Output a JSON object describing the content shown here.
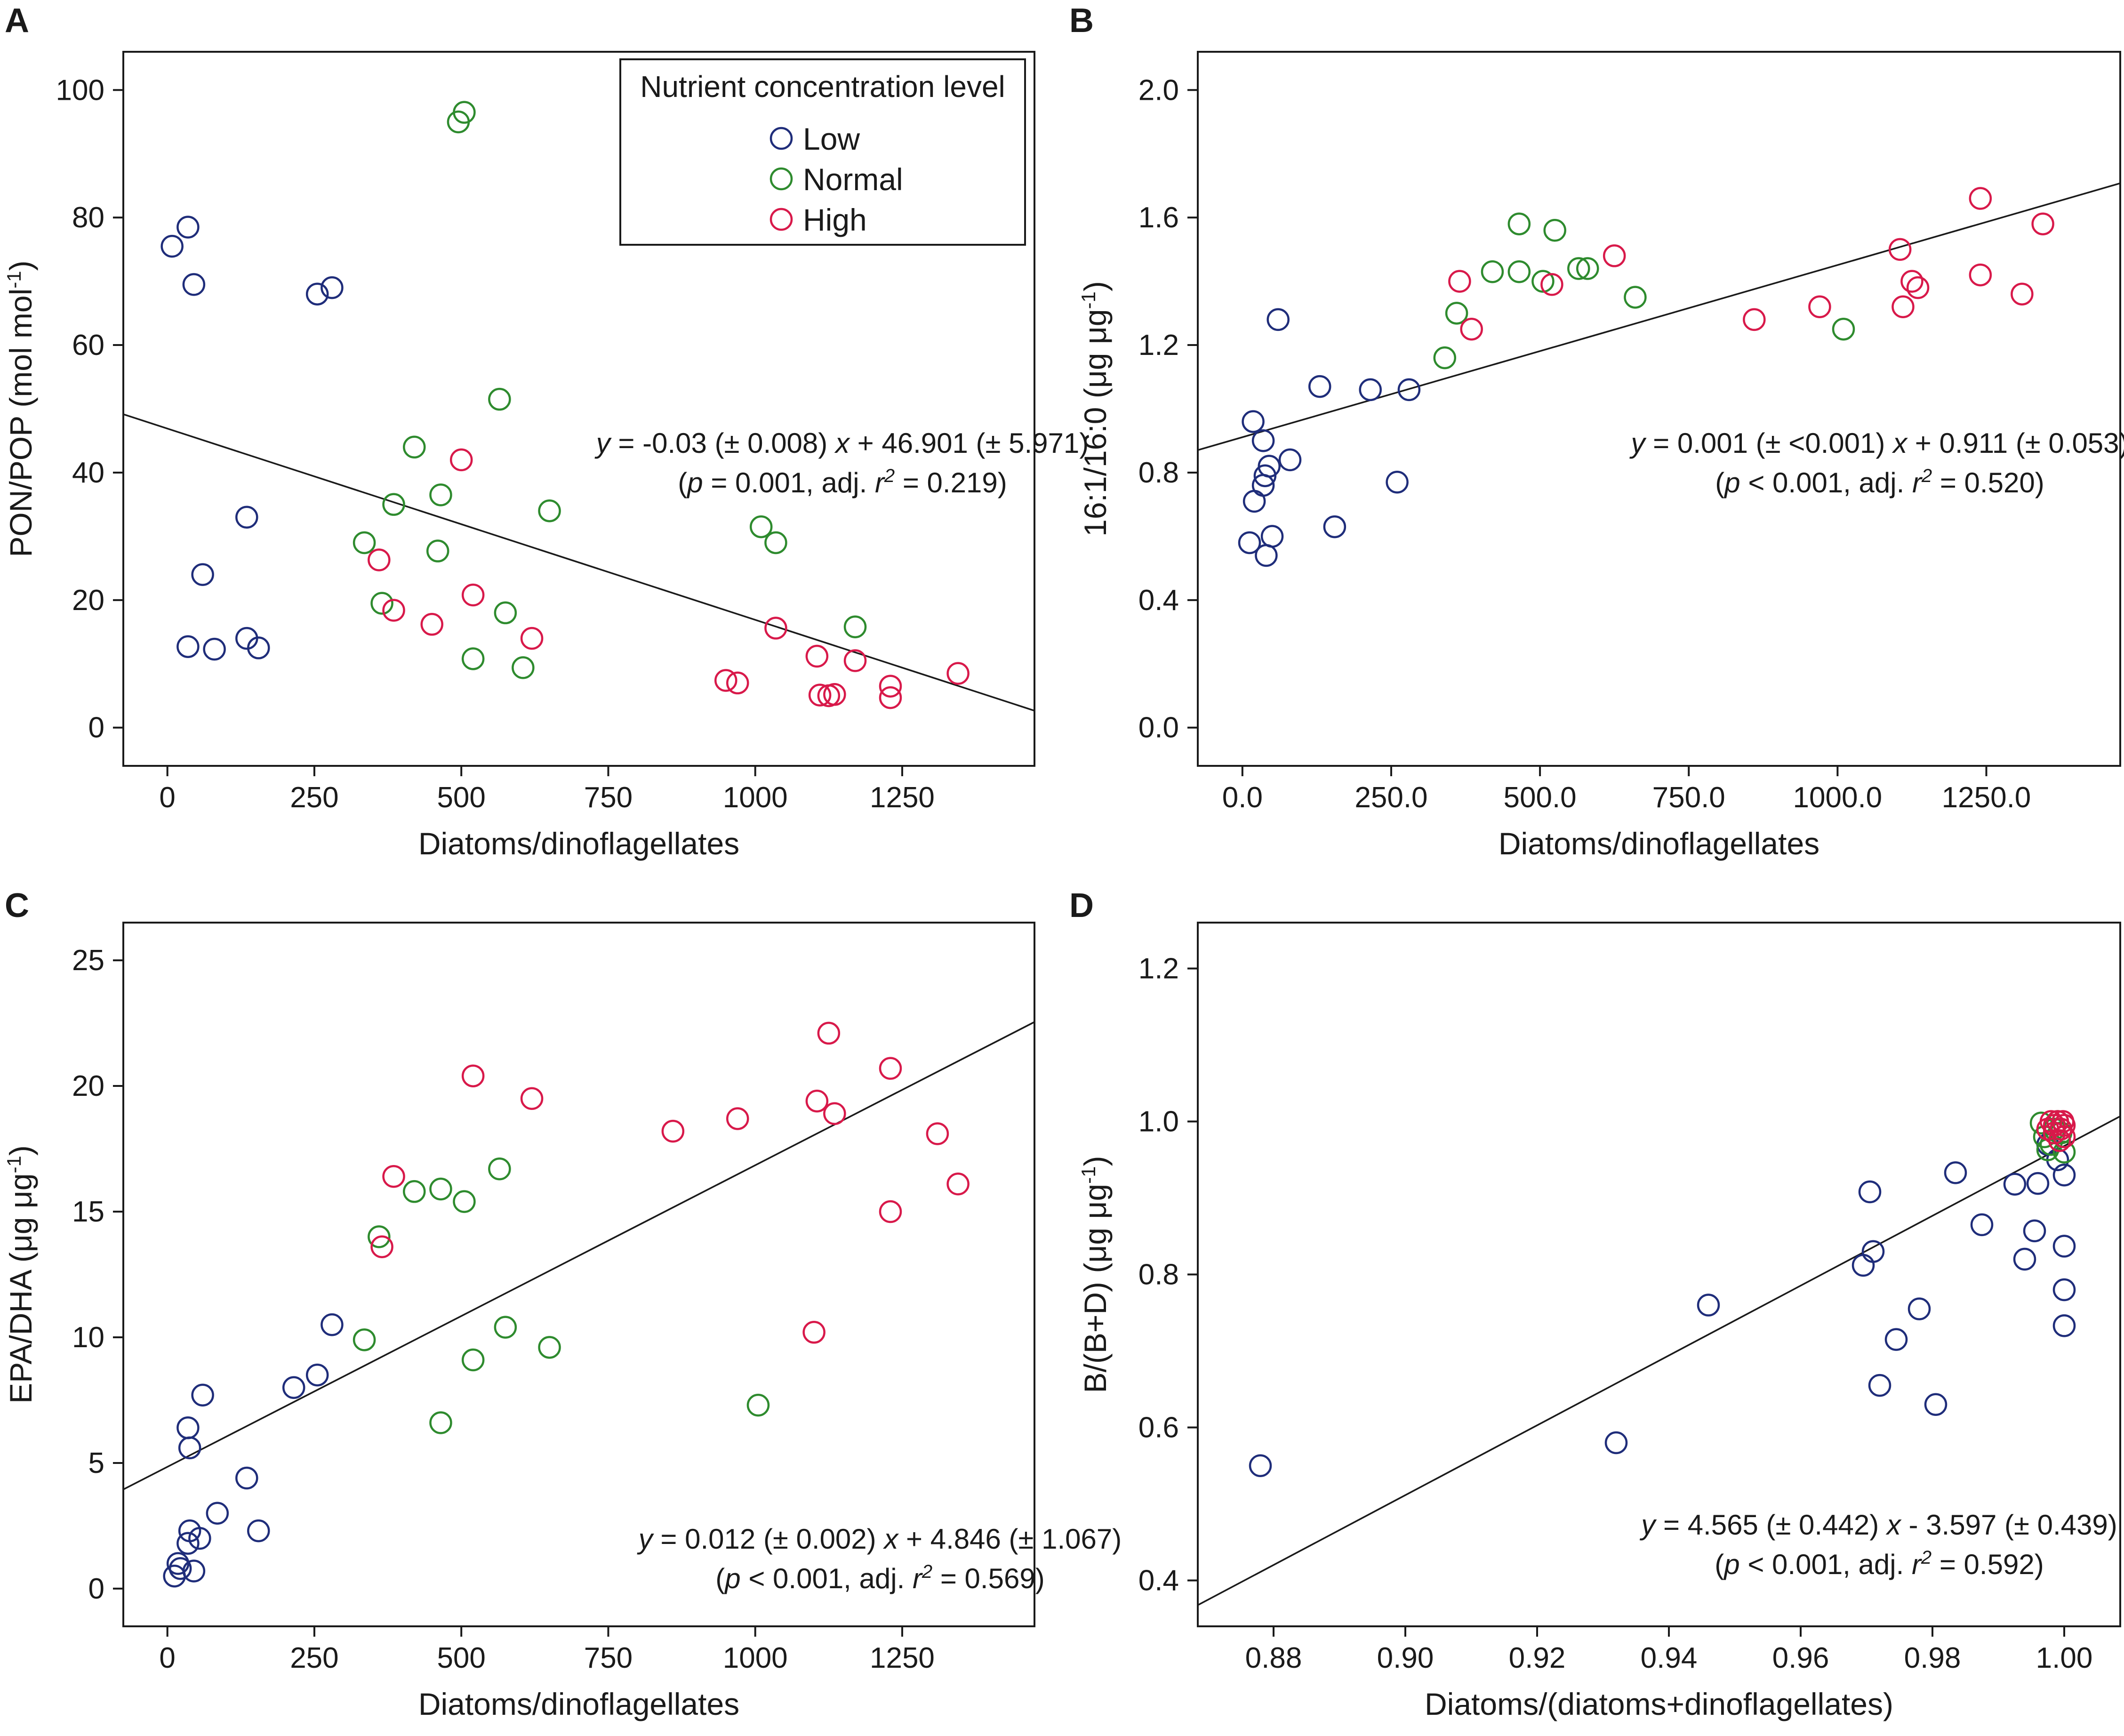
{
  "colors": {
    "Low": "#1f2d7a",
    "Normal": "#2e8b2e",
    "High": "#d8194a",
    "text": "#1a1a1a"
  },
  "legend": {
    "title": "Nutrient concentration level",
    "entries": [
      "Low",
      "Normal",
      "High"
    ]
  },
  "chart_data": [
    {
      "id": "A",
      "panel_label": "A",
      "type": "scatter",
      "xlabel": "Diatoms/dinoflagellates",
      "ylabel": "PON/POP (mol mol",
      "ylabel_sup": "-1",
      "ylabel_end": ")",
      "xlim": [
        -75,
        1475
      ],
      "ylim": [
        -6,
        106
      ],
      "xticks": [
        0,
        250,
        500,
        750,
        1000,
        1250
      ],
      "yticks": [
        0,
        20,
        40,
        60,
        80,
        100
      ],
      "tick_decimals": 0,
      "regression": {
        "slope": -0.03,
        "intercept": 46.901
      },
      "equation": [
        "y = -0.03 (± 0.008) x + 46.901 (± 5.971)",
        "(p = 0.001, adj. r2 = 0.219)"
      ],
      "has_legend": true,
      "series": [
        {
          "name": "Low",
          "points": [
            [
              8,
              75.5
            ],
            [
              35,
              78.5
            ],
            [
              45,
              69.5
            ],
            [
              255,
              68
            ],
            [
              280,
              69
            ],
            [
              35,
              12.7
            ],
            [
              80,
              12.3
            ],
            [
              135,
              14
            ],
            [
              155,
              12.5
            ],
            [
              60,
              24
            ],
            [
              135,
              33
            ]
          ]
        },
        {
          "name": "Normal",
          "points": [
            [
              495,
              95
            ],
            [
              505,
              96.5
            ],
            [
              565,
              51.5
            ],
            [
              420,
              44
            ],
            [
              465,
              36.5
            ],
            [
              385,
              35
            ],
            [
              650,
              34
            ],
            [
              335,
              29
            ],
            [
              460,
              27.7
            ],
            [
              365,
              19.5
            ],
            [
              575,
              18
            ],
            [
              520,
              10.8
            ],
            [
              605,
              9.4
            ],
            [
              1010,
              31.5
            ],
            [
              1035,
              29
            ],
            [
              1170,
              15.8
            ]
          ]
        },
        {
          "name": "High",
          "points": [
            [
              500,
              42
            ],
            [
              360,
              26.3
            ],
            [
              385,
              18.4
            ],
            [
              520,
              20.8
            ],
            [
              450,
              16.2
            ],
            [
              620,
              14
            ],
            [
              1035,
              15.6
            ],
            [
              1105,
              11.2
            ],
            [
              1170,
              10.5
            ],
            [
              950,
              7.4
            ],
            [
              970,
              7
            ],
            [
              1110,
              5.1
            ],
            [
              1125,
              5
            ],
            [
              1135,
              5.2
            ],
            [
              1230,
              6.5
            ],
            [
              1230,
              4.7
            ],
            [
              1345,
              8.5
            ]
          ]
        }
      ]
    },
    {
      "id": "B",
      "panel_label": "B",
      "type": "scatter",
      "xlabel": "Diatoms/dinoflagellates",
      "ylabel": "16:1/16:0 (μg μg",
      "ylabel_sup": "-1",
      "ylabel_end": ")",
      "xlim": [
        -75,
        1475
      ],
      "ylim": [
        -0.12,
        2.12
      ],
      "xticks": [
        0,
        250,
        500,
        750,
        1000,
        1250
      ],
      "yticks": [
        0,
        0.4,
        0.8,
        1.2,
        1.6,
        2.0
      ],
      "tick_decimals": 1,
      "regression": {
        "slope": 0.00054,
        "intercept": 0.911
      },
      "equation": [
        "y = 0.001 (± <0.001) x + 0.911 (± 0.053)",
        "(p < 0.001, adj. r2 = 0.520)"
      ],
      "has_legend": false,
      "series": [
        {
          "name": "Low",
          "points": [
            [
              60,
              1.28
            ],
            [
              130,
              1.07
            ],
            [
              215,
              1.06
            ],
            [
              280,
              1.06
            ],
            [
              18,
              0.96
            ],
            [
              35,
              0.9
            ],
            [
              80,
              0.84
            ],
            [
              45,
              0.82
            ],
            [
              38,
              0.79
            ],
            [
              35,
              0.76
            ],
            [
              260,
              0.77
            ],
            [
              20,
              0.71
            ],
            [
              155,
              0.63
            ],
            [
              50,
              0.6
            ],
            [
              12,
              0.58
            ],
            [
              40,
              0.54
            ]
          ]
        },
        {
          "name": "Normal",
          "points": [
            [
              465,
              1.58
            ],
            [
              525,
              1.56
            ],
            [
              420,
              1.43
            ],
            [
              465,
              1.43
            ],
            [
              505,
              1.4
            ],
            [
              565,
              1.44
            ],
            [
              580,
              1.44
            ],
            [
              660,
              1.35
            ],
            [
              360,
              1.3
            ],
            [
              340,
              1.16
            ],
            [
              1010,
              1.25
            ]
          ]
        },
        {
          "name": "High",
          "points": [
            [
              1240,
              1.66
            ],
            [
              1345,
              1.58
            ],
            [
              1105,
              1.5
            ],
            [
              625,
              1.48
            ],
            [
              365,
              1.4
            ],
            [
              520,
              1.39
            ],
            [
              1125,
              1.4
            ],
            [
              1135,
              1.38
            ],
            [
              1240,
              1.42
            ],
            [
              1110,
              1.32
            ],
            [
              1310,
              1.36
            ],
            [
              385,
              1.25
            ],
            [
              860,
              1.28
            ],
            [
              970,
              1.32
            ]
          ]
        }
      ]
    },
    {
      "id": "C",
      "panel_label": "C",
      "type": "scatter",
      "xlabel": "Diatoms/dinoflagellates",
      "ylabel": "EPA/DHA (μg μg",
      "ylabel_sup": "-1",
      "ylabel_end": ")",
      "xlim": [
        -75,
        1475
      ],
      "ylim": [
        -1.5,
        26.5
      ],
      "xticks": [
        0,
        250,
        500,
        750,
        1000,
        1250
      ],
      "yticks": [
        0,
        5,
        10,
        15,
        20,
        25
      ],
      "tick_decimals": 0,
      "regression": {
        "slope": 0.012,
        "intercept": 4.846
      },
      "equation": [
        "y = 0.012 (± 0.002) x + 4.846 (± 1.067)",
        "(p < 0.001, adj. r2 = 0.569)"
      ],
      "has_legend": false,
      "series": [
        {
          "name": "Low",
          "points": [
            [
              280,
              10.5
            ],
            [
              255,
              8.5
            ],
            [
              215,
              8
            ],
            [
              60,
              7.7
            ],
            [
              35,
              6.4
            ],
            [
              38,
              5.6
            ],
            [
              135,
              4.4
            ],
            [
              85,
              3
            ],
            [
              155,
              2.3
            ],
            [
              38,
              2.3
            ],
            [
              55,
              2
            ],
            [
              35,
              1.8
            ],
            [
              18,
              1
            ],
            [
              22,
              0.8
            ],
            [
              12,
              0.5
            ],
            [
              45,
              0.7
            ]
          ]
        },
        {
          "name": "Normal",
          "points": [
            [
              565,
              16.7
            ],
            [
              465,
              15.9
            ],
            [
              505,
              15.4
            ],
            [
              420,
              15.8
            ],
            [
              360,
              14
            ],
            [
              335,
              9.9
            ],
            [
              575,
              10.4
            ],
            [
              650,
              9.6
            ],
            [
              520,
              9.1
            ],
            [
              465,
              6.6
            ],
            [
              1005,
              7.3
            ]
          ]
        },
        {
          "name": "High",
          "points": [
            [
              1125,
              22.1
            ],
            [
              1230,
              20.7
            ],
            [
              520,
              20.4
            ],
            [
              620,
              19.5
            ],
            [
              1105,
              19.4
            ],
            [
              1135,
              18.9
            ],
            [
              970,
              18.7
            ],
            [
              860,
              18.2
            ],
            [
              1310,
              18.1
            ],
            [
              385,
              16.4
            ],
            [
              1345,
              16.1
            ],
            [
              1230,
              15
            ],
            [
              365,
              13.6
            ],
            [
              1100,
              10.2
            ]
          ]
        }
      ]
    },
    {
      "id": "D",
      "panel_label": "D",
      "type": "scatter",
      "xlabel": "Diatoms/(diatoms+dinoflagellates)",
      "ylabel": "B/(B+D) (μg μg",
      "ylabel_sup": "-1",
      "ylabel_end": ")",
      "xlim": [
        0.8685,
        1.0085
      ],
      "ylim": [
        0.34,
        1.26
      ],
      "xticks": [
        0.88,
        0.9,
        0.92,
        0.94,
        0.96,
        0.98,
        1.0
      ],
      "yticks": [
        0.4,
        0.6,
        0.8,
        1.0,
        1.2
      ],
      "tick_decimals": 2,
      "ytick_decimals": 1,
      "regression": {
        "slope": 4.565,
        "intercept": -3.597
      },
      "equation": [
        "y = 4.565 (± 0.442) x - 3.597 (± 0.439)",
        "(p < 0.001, adj. r2 = 0.592)"
      ],
      "has_legend": false,
      "series": [
        {
          "name": "Low",
          "points": [
            [
              0.878,
              0.55
            ],
            [
              0.932,
              0.58
            ],
            [
              0.946,
              0.76
            ],
            [
              0.9695,
              0.812
            ],
            [
              0.9705,
              0.908
            ],
            [
              0.971,
              0.83
            ],
            [
              0.972,
              0.655
            ],
            [
              0.9745,
              0.715
            ],
            [
              0.978,
              0.755
            ],
            [
              0.9805,
              0.63
            ],
            [
              0.9835,
              0.933
            ],
            [
              0.9875,
              0.865
            ],
            [
              0.9925,
              0.918
            ],
            [
              0.994,
              0.82
            ],
            [
              0.9955,
              0.857
            ],
            [
              0.996,
              0.919
            ],
            [
              0.9975,
              0.97
            ],
            [
              0.999,
              0.95
            ],
            [
              1.0,
              0.93
            ],
            [
              1.0,
              0.837
            ],
            [
              1.0,
              0.78
            ],
            [
              1.0,
              0.733
            ]
          ]
        },
        {
          "name": "Normal",
          "points": [
            [
              0.9965,
              0.998
            ],
            [
              0.997,
              0.98
            ],
            [
              0.998,
              0.97
            ],
            [
              0.9985,
              0.99
            ],
            [
              0.999,
              1.0
            ],
            [
              0.9995,
              0.985
            ],
            [
              1.0,
              0.96
            ],
            [
              0.9975,
              0.963
            ]
          ]
        },
        {
          "name": "High",
          "points": [
            [
              0.9975,
              0.99
            ],
            [
              0.998,
              1.0
            ],
            [
              0.9985,
              0.985
            ],
            [
              0.999,
              1.0
            ],
            [
              0.9993,
              0.975
            ],
            [
              0.9995,
              0.99
            ],
            [
              0.9998,
              1.0
            ],
            [
              1.0,
              0.98
            ],
            [
              0.9985,
              0.995
            ],
            [
              1.0,
              0.995
            ]
          ]
        }
      ]
    }
  ]
}
